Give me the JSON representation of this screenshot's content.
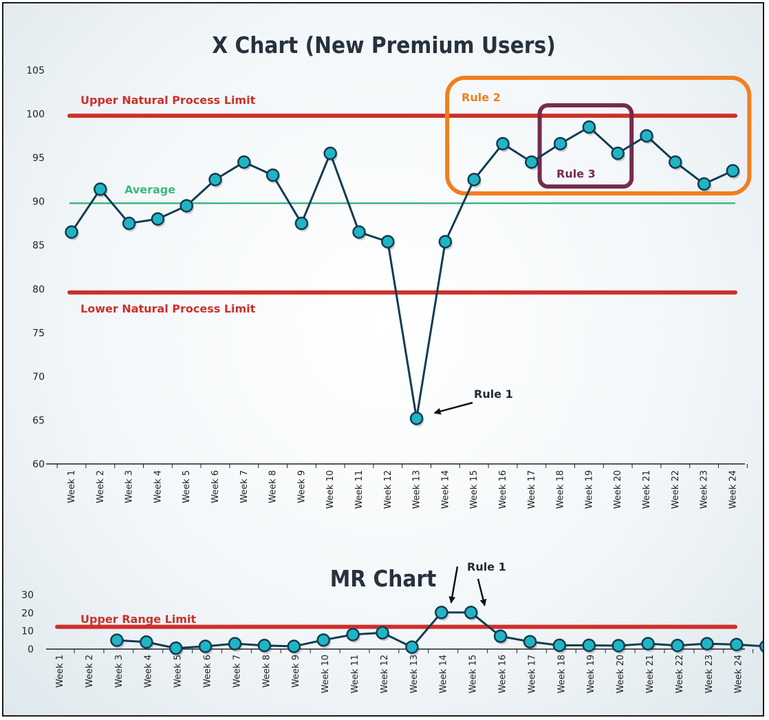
{
  "colors": {
    "line": "#123c52",
    "marker_fill": "#20b5c4",
    "limit": "#cf2f2b",
    "average": "#3fb884",
    "rule2": "#f07f1e",
    "rule3": "#762b4d",
    "axis": "#222222"
  },
  "chart_data": [
    {
      "type": "line",
      "title": "X Chart (New Premium Users)",
      "categories": [
        "Week 1",
        "Week 2",
        "Week 3",
        "Week 4",
        "Week 5",
        "Week 6",
        "Week 7",
        "Week 8",
        "Week 9",
        "Week 10",
        "Week 11",
        "Week 12",
        "Week 13",
        "Week 14",
        "Week 15",
        "Week 16",
        "Week 17",
        "Week 18",
        "Week 19",
        "Week 20",
        "Week 21",
        "Week 22",
        "Week 23",
        "Week 24"
      ],
      "values": [
        86.5,
        91.4,
        87.5,
        88.0,
        89.5,
        92.5,
        94.5,
        93.0,
        87.5,
        95.5,
        86.5,
        85.4,
        65.2,
        85.4,
        92.5,
        96.6,
        94.5,
        96.6,
        98.5,
        95.5,
        97.5,
        94.5,
        92.0,
        93.5
      ],
      "ylim": [
        60,
        105
      ],
      "yticks": [
        "60",
        "65",
        "70",
        "75",
        "80",
        "85",
        "90",
        "95",
        "100",
        "105"
      ],
      "reference_lines": [
        {
          "label": "Upper Natural Process Limit",
          "value": 99.8
        },
        {
          "label": "Average",
          "value": 89.8
        },
        {
          "label": "Lower Natural Process Limit",
          "value": 79.6
        }
      ],
      "annotations": {
        "rule1": "Rule 1",
        "rule2": "Rule 2",
        "rule3": "Rule 3"
      },
      "grid": false
    },
    {
      "type": "line",
      "title": "MR Chart",
      "categories": [
        "Week 1",
        "Week 2",
        "Week 3",
        "Week 4",
        "Week 5",
        "Week 6",
        "Week 7",
        "Week 8",
        "Week 9",
        "Week 10",
        "Week 11",
        "Week 12",
        "Week 13",
        "Week 14",
        "Week 15",
        "Week 16",
        "Week 17",
        "Week 18",
        "Week 19",
        "Week 20",
        "Week 21",
        "Week 22",
        "Week 23",
        "Week 24"
      ],
      "values": [
        null,
        4.9,
        3.9,
        0.5,
        1.5,
        3.0,
        2.0,
        1.5,
        5.0,
        8.0,
        9.0,
        1.1,
        20.2,
        20.2,
        7.1,
        4.1,
        2.1,
        2.1,
        1.9,
        3.0,
        2.0,
        3.0,
        2.5,
        1.5
      ],
      "ylim": [
        0,
        30
      ],
      "yticks": [
        "0",
        "10",
        "20",
        "30"
      ],
      "reference_lines": [
        {
          "label": "Upper Range Limit",
          "value": 12.3
        }
      ],
      "annotations": {
        "rule1": "Rule 1"
      },
      "grid": false
    }
  ]
}
